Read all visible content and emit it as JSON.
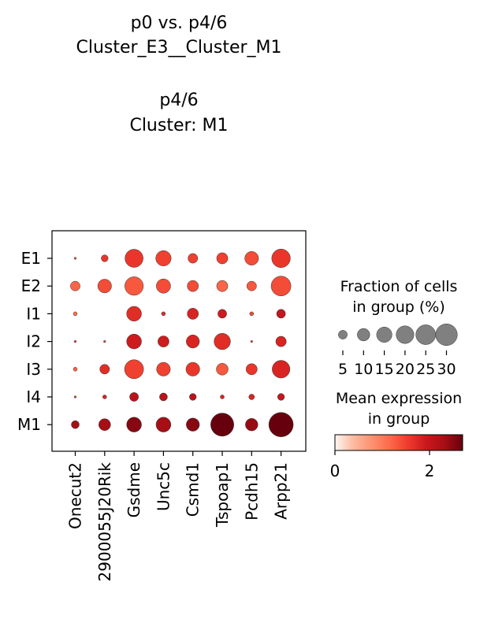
{
  "chart_data": {
    "type": "dotplot",
    "title_lines": [
      "p0 vs. p4/6",
      "Cluster_E3__Cluster_M1",
      "",
      "p4/6",
      "Cluster: M1"
    ],
    "genes": [
      "Onecut2",
      "2900055J20Rik",
      "Gsdme",
      "Unc5c",
      "Csmd1",
      "Tspoap1",
      "Pcdh15",
      "Arpp21"
    ],
    "groups": [
      "E1",
      "E2",
      "I1",
      "I2",
      "I3",
      "I4",
      "M1"
    ],
    "fraction_pct": [
      [
        0.3,
        3,
        21,
        15,
        6,
        8,
        12,
        22
      ],
      [
        6,
        12,
        22,
        13,
        8,
        8,
        6,
        25
      ],
      [
        1,
        0,
        14,
        1,
        8,
        5,
        1,
        5
      ],
      [
        0.3,
        0.3,
        14,
        8,
        11,
        17,
        0.3,
        7
      ],
      [
        1,
        6,
        23,
        12,
        12,
        9,
        8,
        20
      ],
      [
        0.3,
        1,
        5,
        4,
        3,
        1,
        2,
        3
      ],
      [
        4,
        9,
        14,
        14,
        11,
        34,
        10,
        38
      ]
    ],
    "mean_expr": [
      [
        1.4,
        1.6,
        1.6,
        1.5,
        1.5,
        1.5,
        1.4,
        1.6
      ],
      [
        1.2,
        1.4,
        1.3,
        1.4,
        1.4,
        1.2,
        1.3,
        1.4
      ],
      [
        1.1,
        0,
        1.7,
        1.7,
        1.8,
        1.9,
        1.4,
        2.0
      ],
      [
        1.5,
        1.5,
        1.9,
        1.9,
        1.8,
        1.7,
        1.4,
        1.8
      ],
      [
        1.2,
        1.7,
        1.5,
        1.5,
        1.6,
        1.3,
        1.6,
        1.8
      ],
      [
        1.5,
        1.8,
        2.1,
        2.1,
        2.1,
        1.8,
        1.8,
        2.0
      ],
      [
        2.3,
        2.3,
        2.5,
        2.3,
        2.5,
        2.7,
        2.4,
        2.7
      ]
    ],
    "size_legend": {
      "title_lines": [
        "Fraction of cells",
        "in group (%)"
      ],
      "values": [
        5,
        10,
        15,
        20,
        25,
        30
      ],
      "labels": [
        "5",
        "10",
        "15",
        "20",
        "25",
        "30"
      ]
    },
    "color_legend": {
      "title_lines": [
        "Mean expression",
        "in group"
      ],
      "min": 0,
      "max": 2.7,
      "ticks": [
        0,
        2
      ],
      "tick_labels": [
        "0",
        "2"
      ]
    },
    "colors": {
      "cmap_stops": [
        "#fff5f0",
        "#fcbba1",
        "#fc9272",
        "#fb6a4a",
        "#ef3b2c",
        "#cb181d",
        "#a50f15",
        "#67000d"
      ],
      "size_legend_dot": "#808080",
      "dot_edge": "#333333"
    },
    "max_fraction": 38
  }
}
